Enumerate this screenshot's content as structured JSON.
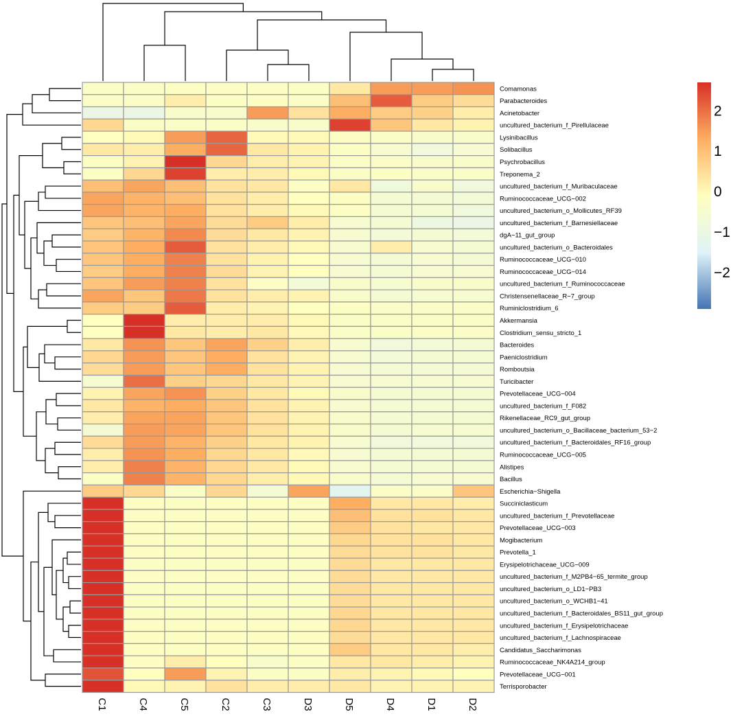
{
  "chart_data": {
    "type": "heatmap",
    "title": "",
    "columns": [
      "C1",
      "C4",
      "C5",
      "C2",
      "C3",
      "D3",
      "D5",
      "D4",
      "D1",
      "D2"
    ],
    "rows": [
      "Comamonas",
      "Parabacteroides",
      "Acinetobacter",
      "uncultured_bacterium_f_Pirellulaceae",
      "Lysinibacillus",
      "Solibacillus",
      "Psychrobacillus",
      "Treponema_2",
      "uncultured_bacterium_f_Muribaculaceae",
      "Ruminococcaceae_UCG−002",
      "uncultured_bacterium_o_Mollicutes_RF39",
      "uncultured_bacterium_f_Barnesiellaceae",
      "dgA−11_gut_group",
      "uncultured_bacterium_o_Bacteroidales",
      "Ruminococcaceae_UCG−010",
      "Ruminococcaceae_UCG−014",
      "uncultured_bacterium_f_Ruminococcaceae",
      "Christensenellaceae_R−7_group",
      "Ruminiclostridium_6",
      "Akkermansia",
      "Clostridium_sensu_stricto_1",
      "Bacteroides",
      "Paeniclostridium",
      "Romboutsia",
      "Turicibacter",
      "Prevotellaceae_UCG−004",
      "uncultured_bacterium_f_F082",
      "Rikenellaceae_RC9_gut_group",
      "uncultured_bacterium_o_Bacillaceae_bacterium_53−2",
      "uncultured_bacterium_f_Bacteroidales_RF16_group",
      "Ruminococcaceae_UCG−005",
      "Alistipes",
      "Bacillus",
      "Escherichia−Shigella",
      "Succiniclasticum",
      "uncultured_bacterium_f_Prevotellaceae",
      "Prevotellaceae_UCG−003",
      "Mogibacterium",
      "Prevotella_1",
      "Erysipelotrichaceae_UCG−009",
      "uncultured_bacterium_f_M2PB4−65_termite_group",
      "uncultured_bacterium_o_LD1−PB3",
      "uncultured_bacterium_o_WCHB1−41",
      "uncultured_bacterium_f_Bacteroidales_BS11_gut_group",
      "uncultured_bacterium_f_Erysipelotrichaceae",
      "uncultured_bacterium_f_Lachnospiraceae",
      "Candidatus_Saccharimonas",
      "Ruminococcaceae_NK4A214_group",
      "Prevotellaceae_UCG−001",
      "Terrisporobacter"
    ],
    "values": [
      [
        -0.3,
        -0.3,
        -0.2,
        -0.2,
        -0.2,
        -0.2,
        0.3,
        1.5,
        1.5,
        1.6
      ],
      [
        -0.3,
        -0.3,
        0.2,
        -0.2,
        -0.2,
        -0.3,
        1.0,
        2.2,
        0.8,
        0.5
      ],
      [
        -1.0,
        -1.0,
        -0.4,
        -0.4,
        1.5,
        0.4,
        1.3,
        0.8,
        0.7,
        0.2
      ],
      [
        0.6,
        -0.3,
        -0.3,
        -0.3,
        -0.4,
        -0.4,
        2.5,
        0.9,
        0.3,
        0.1
      ],
      [
        -0.1,
        0.0,
        1.5,
        2.1,
        0.0,
        0.0,
        -0.2,
        -0.3,
        -0.4,
        -0.4
      ],
      [
        0.3,
        0.2,
        1.3,
        2.1,
        0.3,
        0.1,
        -0.2,
        -0.5,
        -0.8,
        -0.5
      ],
      [
        -0.2,
        0.1,
        2.7,
        0.6,
        0.2,
        0.1,
        -0.3,
        -0.3,
        -0.4,
        -0.4
      ],
      [
        -0.2,
        0.6,
        2.5,
        0.2,
        0.2,
        0.0,
        -0.3,
        -0.2,
        -0.3,
        -0.3
      ],
      [
        1.0,
        1.4,
        1.0,
        0.4,
        0.3,
        -0.2,
        0.3,
        -0.8,
        -0.4,
        -0.8
      ],
      [
        1.4,
        1.2,
        1.0,
        0.4,
        0.2,
        -0.1,
        -0.2,
        -0.6,
        -0.6,
        -0.7
      ],
      [
        1.4,
        1.2,
        1.3,
        0.4,
        0.2,
        0.0,
        -0.2,
        -0.6,
        -0.6,
        -0.8
      ],
      [
        0.9,
        1.0,
        1.4,
        0.5,
        0.8,
        0.2,
        -0.5,
        -0.6,
        -0.9,
        -1.0
      ],
      [
        0.8,
        1.2,
        1.7,
        0.5,
        0.3,
        0.1,
        -0.5,
        -0.7,
        -0.6,
        -0.7
      ],
      [
        0.9,
        1.3,
        2.2,
        0.4,
        0.2,
        0.0,
        -0.5,
        0.2,
        -0.5,
        -0.6
      ],
      [
        0.9,
        1.3,
        1.8,
        0.4,
        0.1,
        -0.1,
        -0.5,
        -0.6,
        -0.5,
        -0.6
      ],
      [
        0.8,
        1.3,
        1.8,
        0.5,
        0.1,
        -0.1,
        -0.5,
        -0.6,
        -0.5,
        -0.5
      ],
      [
        0.9,
        1.5,
        1.8,
        0.4,
        -0.2,
        -0.7,
        -0.4,
        -0.5,
        -0.4,
        -0.4
      ],
      [
        1.4,
        0.9,
        1.9,
        0.4,
        0.2,
        0.1,
        -0.4,
        -0.6,
        -0.5,
        -0.5
      ],
      [
        0.8,
        0.8,
        2.2,
        0.2,
        0.1,
        -0.1,
        -0.2,
        -0.3,
        -0.3,
        -0.3
      ],
      [
        -0.1,
        2.7,
        0.2,
        0.2,
        0.2,
        0.0,
        -0.3,
        -0.3,
        -0.3,
        -0.3
      ],
      [
        -0.1,
        2.7,
        0.3,
        0.2,
        0.3,
        0.0,
        -0.3,
        -0.3,
        -0.3,
        -0.3
      ],
      [
        0.3,
        1.6,
        0.9,
        1.4,
        0.7,
        0.2,
        -0.5,
        -0.8,
        -0.7,
        -0.6
      ],
      [
        0.6,
        1.5,
        0.9,
        1.3,
        0.4,
        0.1,
        -0.5,
        -0.7,
        -0.6,
        -0.6
      ],
      [
        0.5,
        1.5,
        0.9,
        1.3,
        0.4,
        0.1,
        -0.5,
        -0.6,
        -0.6,
        -0.6
      ],
      [
        -0.5,
        2.0,
        0.7,
        0.6,
        0.3,
        0.1,
        -0.5,
        -0.5,
        -0.5,
        -0.5
      ],
      [
        0.1,
        1.4,
        1.6,
        0.7,
        0.3,
        0.0,
        -0.4,
        -0.6,
        -0.6,
        -0.6
      ],
      [
        0.3,
        1.2,
        1.3,
        0.9,
        0.4,
        0.1,
        -0.5,
        -0.6,
        -0.6,
        -0.6
      ],
      [
        0.2,
        1.4,
        1.4,
        0.9,
        0.4,
        0.1,
        -0.4,
        -0.6,
        -0.6,
        -0.6
      ],
      [
        -0.6,
        1.5,
        1.4,
        0.9,
        0.4,
        0.1,
        -0.4,
        -0.6,
        -0.5,
        -0.5
      ],
      [
        0.5,
        1.5,
        1.2,
        0.7,
        0.3,
        0.1,
        -0.5,
        -0.8,
        -0.8,
        -0.8
      ],
      [
        0.2,
        1.6,
        1.3,
        0.6,
        0.3,
        0.0,
        -0.5,
        -0.6,
        -0.6,
        -0.6
      ],
      [
        0.2,
        1.8,
        1.2,
        0.6,
        0.3,
        0.0,
        -0.5,
        -0.6,
        -0.6,
        -0.6
      ],
      [
        -0.2,
        1.8,
        1.2,
        0.6,
        0.2,
        0.0,
        -0.4,
        -0.6,
        -0.5,
        -0.5
      ],
      [
        0.8,
        0.6,
        -0.3,
        0.6,
        -0.6,
        1.4,
        -1.3,
        -0.3,
        -0.3,
        0.9
      ],
      [
        2.7,
        -0.2,
        -0.2,
        -0.2,
        -0.2,
        -0.2,
        1.3,
        0.3,
        0.3,
        0.2
      ],
      [
        2.7,
        -0.2,
        -0.2,
        -0.2,
        -0.2,
        -0.2,
        1.0,
        0.4,
        0.4,
        0.3
      ],
      [
        2.7,
        -0.2,
        -0.2,
        -0.2,
        -0.2,
        -0.2,
        0.8,
        0.4,
        0.3,
        0.3
      ],
      [
        2.7,
        -0.2,
        -0.2,
        -0.2,
        -0.2,
        -0.2,
        0.6,
        0.4,
        0.4,
        0.3
      ],
      [
        2.7,
        -0.2,
        -0.2,
        -0.2,
        -0.2,
        -0.2,
        0.5,
        0.4,
        0.4,
        0.3
      ],
      [
        2.7,
        -0.2,
        -0.2,
        -0.2,
        -0.2,
        -0.2,
        0.5,
        0.3,
        0.3,
        0.3
      ],
      [
        2.7,
        -0.2,
        -0.2,
        -0.2,
        -0.2,
        -0.2,
        0.5,
        0.3,
        0.3,
        0.3
      ],
      [
        2.7,
        -0.2,
        -0.2,
        -0.2,
        -0.2,
        -0.2,
        0.5,
        0.3,
        0.3,
        0.3
      ],
      [
        2.7,
        -0.2,
        -0.2,
        -0.2,
        -0.2,
        -0.2,
        0.5,
        0.3,
        0.3,
        0.3
      ],
      [
        2.7,
        -0.2,
        -0.2,
        -0.2,
        -0.2,
        -0.2,
        0.6,
        0.3,
        0.3,
        0.3
      ],
      [
        2.7,
        -0.2,
        -0.2,
        -0.2,
        -0.2,
        -0.2,
        0.6,
        0.3,
        0.3,
        0.3
      ],
      [
        2.7,
        -0.2,
        -0.2,
        -0.2,
        -0.2,
        -0.2,
        0.5,
        0.3,
        0.3,
        0.3
      ],
      [
        2.7,
        -0.2,
        -0.2,
        -0.2,
        -0.2,
        -0.2,
        0.8,
        0.3,
        0.3,
        0.2
      ],
      [
        2.7,
        -0.2,
        0.2,
        -0.1,
        -0.4,
        -0.2,
        0.3,
        0.3,
        0.2,
        0.1
      ],
      [
        2.3,
        -0.1,
        1.5,
        0.1,
        -0.2,
        -0.2,
        0.2,
        0.1,
        0.0,
        -0.1
      ],
      [
        2.7,
        0.0,
        0.1,
        0.4,
        0.2,
        0.2,
        0.3,
        0.1,
        0.1,
        0.1
      ]
    ],
    "colorbar": {
      "min": -2.9,
      "max": 2.7,
      "ticks": [
        2,
        1,
        0,
        -1,
        -2
      ],
      "tick_labels": [
        "2",
        "1",
        "0",
        "−1",
        "−2"
      ],
      "colors": [
        "#4575b4",
        "#e0f3f8",
        "#ffffbf",
        "#fdae61",
        "#d73027"
      ]
    },
    "legend_position": "right",
    "dendrograms": [
      "columns-top",
      "rows-left"
    ],
    "cell_border_color": "#999999"
  }
}
